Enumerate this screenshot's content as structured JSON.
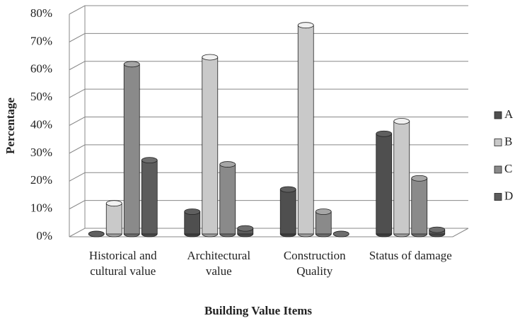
{
  "chart_data": {
    "type": "bar",
    "x_label": "Building Value Items",
    "y_label": "Percentage",
    "categories": [
      "Historical and cultural value",
      "Architectural value",
      "Construction Quality",
      "Status of damage"
    ],
    "series": [
      {
        "name": "A",
        "color": "#4f4f4f",
        "values": [
          0,
          8,
          16,
          36
        ]
      },
      {
        "name": "B",
        "color": "#c9c9c9",
        "values": [
          11,
          63.5,
          75,
          40.5
        ]
      },
      {
        "name": "C",
        "color": "#8a8a8a",
        "values": [
          61,
          25,
          8,
          20
        ]
      },
      {
        "name": "D",
        "color": "#5c5c5c",
        "values": [
          26.5,
          2,
          0,
          1.5
        ]
      }
    ],
    "ylim": [
      0,
      80
    ],
    "yticks": [
      {
        "value": 0,
        "label": "0%"
      },
      {
        "value": 10,
        "label": "10%"
      },
      {
        "value": 20,
        "label": "20%"
      },
      {
        "value": 30,
        "label": "30%"
      },
      {
        "value": 40,
        "label": "40%"
      },
      {
        "value": 50,
        "label": "50%"
      },
      {
        "value": 60,
        "label": "60%"
      },
      {
        "value": 70,
        "label": "70%"
      },
      {
        "value": 80,
        "label": "80%"
      }
    ],
    "grid": true,
    "legend": "right"
  }
}
